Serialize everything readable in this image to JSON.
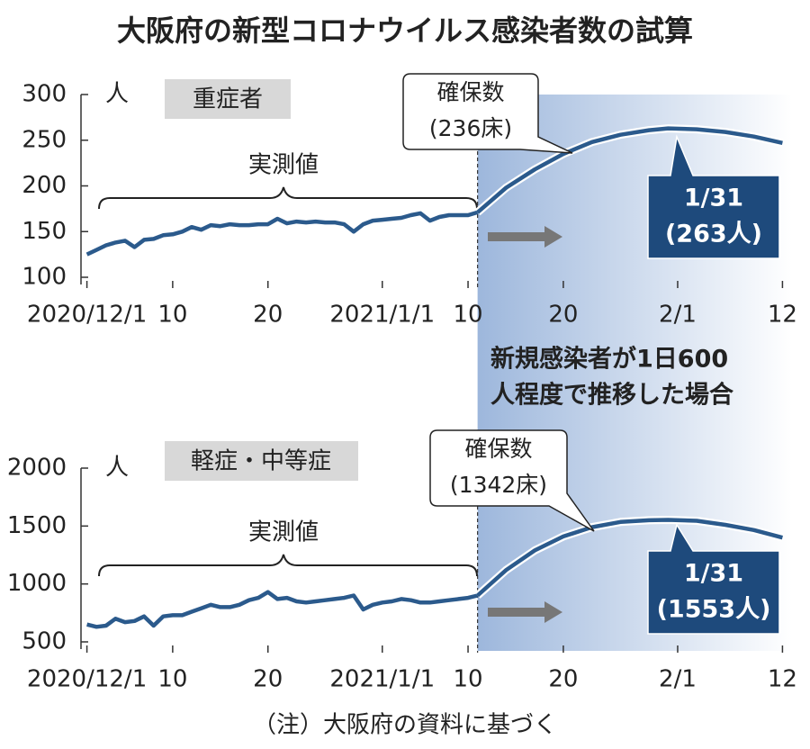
{
  "title": "大阪府の新型コロナウイルス感染者数の試算",
  "scenario": [
    "新規感染者が1日600",
    "人程度で推移した場合"
  ],
  "note": "（注）大阪府の資料に基づく",
  "chart_data": [
    {
      "type": "line",
      "label": "重症者",
      "unit": "人",
      "bracket_label": "実測値",
      "capacity_label": [
        "確保数",
        "(236床)"
      ],
      "peak_label": [
        "1/31",
        "(263人)"
      ],
      "xlim": [
        "2020-11-30",
        "2021-02-13"
      ],
      "xticks": [
        {
          "value": "2020-12-01",
          "label": "2020/12/1"
        },
        {
          "value": "2020-12-10",
          "label": "10"
        },
        {
          "value": "2020-12-20",
          "label": "20"
        },
        {
          "value": "2021-01-01",
          "label": "2021/1/1"
        },
        {
          "value": "2021-01-10",
          "label": "10"
        },
        {
          "value": "2021-01-20",
          "label": "20"
        },
        {
          "value": "2021-02-01",
          "label": "2/1"
        },
        {
          "value": "2021-02-12",
          "label": "12"
        }
      ],
      "ylim": [
        100,
        300
      ],
      "yticks": [
        100,
        150,
        200,
        250,
        300
      ],
      "series": [
        {
          "color": "#2b5a8c",
          "x": [
            "2020-12-01",
            "2020-12-02",
            "2020-12-03",
            "2020-12-04",
            "2020-12-05",
            "2020-12-06",
            "2020-12-07",
            "2020-12-08",
            "2020-12-09",
            "2020-12-10",
            "2020-12-11",
            "2020-12-12",
            "2020-12-13",
            "2020-12-14",
            "2020-12-15",
            "2020-12-16",
            "2020-12-17",
            "2020-12-18",
            "2020-12-19",
            "2020-12-20",
            "2020-12-21",
            "2020-12-22",
            "2020-12-23",
            "2020-12-24",
            "2020-12-25",
            "2020-12-26",
            "2020-12-27",
            "2020-12-28",
            "2020-12-29",
            "2020-12-30",
            "2020-12-31",
            "2021-01-01",
            "2021-01-02",
            "2021-01-03",
            "2021-01-04",
            "2021-01-05",
            "2021-01-06",
            "2021-01-07",
            "2021-01-08",
            "2021-01-09",
            "2021-01-10",
            "2021-01-11"
          ],
          "values": [
            125,
            130,
            135,
            138,
            140,
            133,
            141,
            142,
            146,
            147,
            150,
            155,
            152,
            157,
            156,
            158,
            157,
            157,
            158,
            158,
            164,
            159,
            161,
            160,
            161,
            160,
            160,
            158,
            150,
            158,
            162,
            163,
            164,
            165,
            168,
            170,
            162,
            166,
            168,
            168,
            168,
            171
          ]
        },
        {
          "color": "#2b5a8c",
          "x": [
            "2021-01-11",
            "2021-01-14",
            "2021-01-17",
            "2021-01-20",
            "2021-01-23",
            "2021-01-26",
            "2021-01-29",
            "2021-01-31",
            "2021-02-03",
            "2021-02-06",
            "2021-02-09",
            "2021-02-12"
          ],
          "values": [
            171,
            198,
            218,
            235,
            248,
            256,
            261,
            263,
            262,
            259,
            254,
            247
          ]
        }
      ]
    },
    {
      "type": "line",
      "label": "軽症・中等症",
      "unit": "人",
      "bracket_label": "実測値",
      "capacity_label": [
        "確保数",
        "(1342床)"
      ],
      "peak_label": [
        "1/31",
        "(1553人)"
      ],
      "xlim": [
        "2020-11-30",
        "2021-02-13"
      ],
      "xticks": [
        {
          "value": "2020-12-01",
          "label": "2020/12/1"
        },
        {
          "value": "2020-12-10",
          "label": "10"
        },
        {
          "value": "2020-12-20",
          "label": "20"
        },
        {
          "value": "2021-01-01",
          "label": "2021/1/1"
        },
        {
          "value": "2021-01-10",
          "label": "10"
        },
        {
          "value": "2021-01-20",
          "label": "20"
        },
        {
          "value": "2021-02-01",
          "label": "2/1"
        },
        {
          "value": "2021-02-12",
          "label": "12"
        }
      ],
      "ylim": [
        500,
        2000
      ],
      "yticks": [
        500,
        1000,
        1500,
        2000
      ],
      "series": [
        {
          "color": "#2b5a8c",
          "x": [
            "2020-12-01",
            "2020-12-02",
            "2020-12-03",
            "2020-12-04",
            "2020-12-05",
            "2020-12-06",
            "2020-12-07",
            "2020-12-08",
            "2020-12-09",
            "2020-12-10",
            "2020-12-11",
            "2020-12-12",
            "2020-12-13",
            "2020-12-14",
            "2020-12-15",
            "2020-12-16",
            "2020-12-17",
            "2020-12-18",
            "2020-12-19",
            "2020-12-20",
            "2020-12-21",
            "2020-12-22",
            "2020-12-23",
            "2020-12-24",
            "2020-12-25",
            "2020-12-26",
            "2020-12-27",
            "2020-12-28",
            "2020-12-29",
            "2020-12-30",
            "2020-12-31",
            "2021-01-01",
            "2021-01-02",
            "2021-01-03",
            "2021-01-04",
            "2021-01-05",
            "2021-01-06",
            "2021-01-07",
            "2021-01-08",
            "2021-01-09",
            "2021-01-10",
            "2021-01-11"
          ],
          "values": [
            650,
            630,
            640,
            700,
            670,
            680,
            720,
            640,
            720,
            730,
            730,
            760,
            790,
            820,
            800,
            800,
            820,
            860,
            880,
            930,
            870,
            880,
            850,
            840,
            850,
            860,
            870,
            880,
            900,
            780,
            820,
            840,
            850,
            870,
            860,
            840,
            840,
            850,
            860,
            870,
            880,
            900
          ]
        },
        {
          "color": "#2b5a8c",
          "x": [
            "2021-01-11",
            "2021-01-14",
            "2021-01-17",
            "2021-01-20",
            "2021-01-23",
            "2021-01-26",
            "2021-01-29",
            "2021-01-31",
            "2021-02-03",
            "2021-02-06",
            "2021-02-09",
            "2021-02-12"
          ],
          "values": [
            900,
            1120,
            1290,
            1410,
            1490,
            1535,
            1550,
            1553,
            1545,
            1510,
            1465,
            1400
          ]
        }
      ]
    }
  ]
}
